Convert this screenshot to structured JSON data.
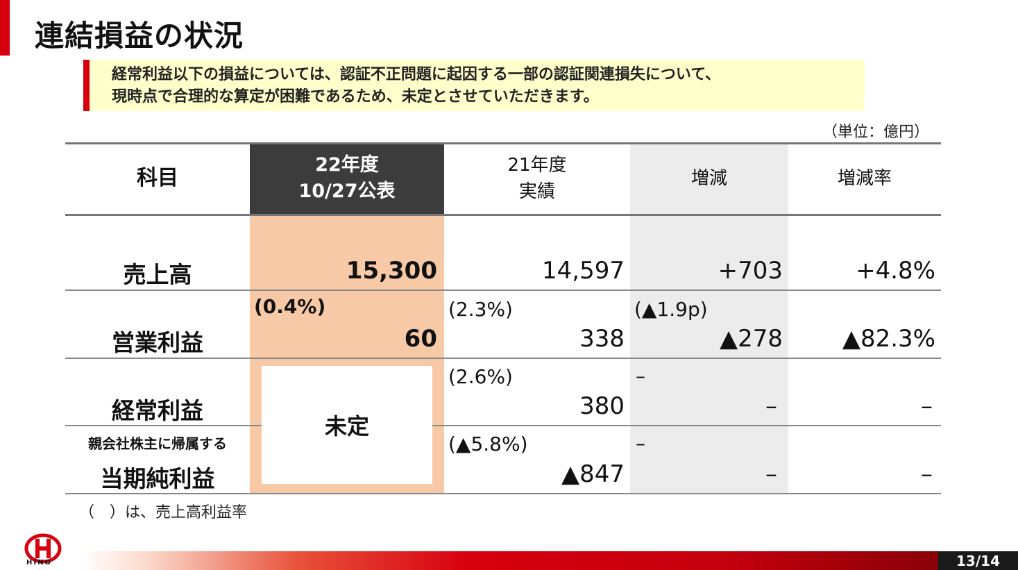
{
  "slide": {
    "title": "連結損益の状況",
    "notice_line1": "経常利益以下の損益については、認証不正問題に起因する一部の認証関連損失について、",
    "notice_line2": "現時点で合理的な算定が困難であるため、未定とさせていただきます。",
    "unit": "（単位：億円）",
    "footnote": "（　）は、売上高利益率",
    "logo_text": "HINO",
    "page": "13/14"
  },
  "table": {
    "headers": {
      "subject": "科目",
      "fy22_line1": "22年度",
      "fy22_line2": "10/27公表",
      "fy21_line1": "21年度",
      "fy21_line2": "実績",
      "change": "増減",
      "change_rate": "増減率"
    },
    "rows": {
      "sales": {
        "label": "売上高",
        "fy22": "15,300",
        "fy21": "14,597",
        "change": "+703",
        "rate": "+4.8%"
      },
      "operating": {
        "label": "営業利益",
        "fy22_ratio": "(0.4%)",
        "fy22": "60",
        "fy21_ratio": "(2.3%)",
        "fy21": "338",
        "change_ratio": "(▲1.9p)",
        "change": "▲278",
        "rate": "▲82.3%"
      },
      "ordinary": {
        "label": "経常利益",
        "fy21_ratio": "(2.6%)",
        "fy21": "380",
        "change_ratio": "–",
        "change": "–",
        "rate": "–"
      },
      "net": {
        "label_sub": "親会社株主に帰属する",
        "label": "当期純利益",
        "fy21_ratio": "(▲5.8%)",
        "fy21": "▲847",
        "change_ratio": "–",
        "change": "–",
        "rate": "–"
      },
      "undetermined": "未定"
    }
  },
  "colors": {
    "accent_red": "#d7000f",
    "header_dark": "#3c3c3c",
    "fy22_fill": "#f8c9a6",
    "change_fill": "#ececec",
    "notice_fill": "#ffffcc"
  }
}
